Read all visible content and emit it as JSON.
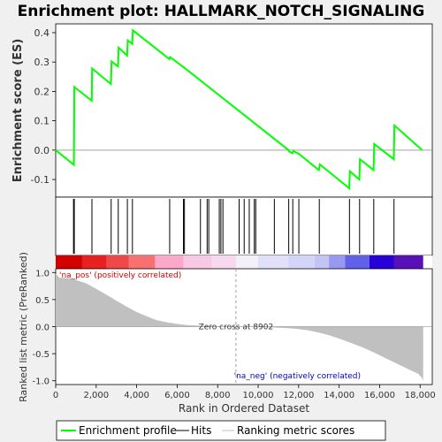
{
  "chart_data": {
    "type": "line",
    "title": "Enrichment plot: HALLMARK_NOTCH_SIGNALING",
    "es_panel": {
      "ylabel": "Enrichment score (ES)",
      "ylim": [
        -0.16,
        0.43
      ],
      "yticks": [
        0.4,
        0.3,
        0.2,
        0.1,
        0.0,
        -0.1
      ],
      "ytick_labels": [
        "0.4",
        "0.3",
        "0.2",
        "0.1",
        "0.0",
        "-0.1"
      ],
      "series": {
        "x": [
          0,
          900,
          920,
          1780,
          1800,
          2730,
          2760,
          3080,
          3110,
          3530,
          3560,
          3780,
          3810,
          5620,
          5650,
          6300,
          6330,
          11500,
          11530,
          11700,
          11730,
          12000,
          13000,
          13050,
          14500,
          14530,
          15000,
          15030,
          15700,
          15730,
          16700,
          16730,
          18100
        ],
        "y": [
          0.0,
          -0.05,
          0.215,
          0.168,
          0.278,
          0.225,
          0.302,
          0.285,
          0.349,
          0.322,
          0.374,
          0.362,
          0.408,
          0.31,
          0.317,
          0.283,
          0.282,
          0.0,
          -0.005,
          -0.01,
          -0.003,
          -0.012,
          -0.068,
          -0.049,
          -0.13,
          -0.072,
          -0.1,
          -0.031,
          -0.068,
          0.021,
          -0.031,
          0.084,
          0.0
        ]
      }
    },
    "hits": [
      880,
      920,
      1790,
      2740,
      3090,
      3540,
      3790,
      5630,
      6310,
      6360,
      7150,
      7480,
      7560,
      8080,
      8160,
      8260,
      9060,
      9310,
      9560,
      9810,
      9880,
      10800,
      11510,
      11710,
      12010,
      13020,
      14510,
      15010,
      15710,
      16710
    ],
    "ranking_panel": {
      "ylabel": "Ranked list metric (PreRanked)",
      "ylim": [
        -1.07,
        1.07
      ],
      "yticks": [
        1.0,
        0.5,
        0.0,
        -0.5,
        -1.0
      ],
      "ytick_labels": [
        "1.0",
        "0.5",
        "0.0",
        "-0.5",
        "-1.0"
      ],
      "x": [
        0,
        200,
        500,
        800,
        1100,
        1500,
        2000,
        2500,
        3000,
        3500,
        4000,
        4500,
        5000,
        5500,
        6000,
        6500,
        7000,
        7500,
        8000,
        8500,
        8902,
        9500,
        10000,
        10500,
        11000,
        11500,
        12000,
        12500,
        13000,
        13500,
        14000,
        14500,
        15000,
        15500,
        16000,
        16500,
        17000,
        17500,
        17900,
        18100,
        18150
      ],
      "y": [
        0.98,
        0.9,
        0.9,
        0.89,
        0.85,
        0.8,
        0.7,
        0.59,
        0.48,
        0.37,
        0.27,
        0.19,
        0.12,
        0.08,
        0.05,
        0.03,
        0.02,
        0.01,
        0.005,
        0.002,
        0.0,
        -0.003,
        -0.006,
        -0.01,
        -0.02,
        -0.03,
        -0.045,
        -0.07,
        -0.11,
        -0.16,
        -0.22,
        -0.29,
        -0.36,
        -0.44,
        -0.53,
        -0.62,
        -0.71,
        -0.8,
        -0.87,
        -0.95,
        -1.0
      ],
      "zero_cross_label": "Zero cross at 8902",
      "zero_cross_x": 8902,
      "pos_label": "'na_pos' (positively correlated)",
      "neg_label": "'na_neg' (negatively correlated)"
    },
    "xaxis": {
      "xlabel": "Rank in Ordered Dataset",
      "xlim": [
        0,
        18600
      ],
      "xticks": [
        0,
        2000,
        4000,
        6000,
        8000,
        10000,
        12000,
        14000,
        16000,
        18000
      ],
      "xtick_labels": [
        "0",
        "2,000",
        "4,000",
        "6,000",
        "8,000",
        "10,000",
        "12,000",
        "14,000",
        "16,000",
        "18,000"
      ]
    },
    "heatbar": {
      "x_end": 18150,
      "stops": [
        {
          "x": 0,
          "color": "#d40000"
        },
        {
          "x": 1300,
          "color": "#e82020"
        },
        {
          "x": 2500,
          "color": "#f04848"
        },
        {
          "x": 3600,
          "color": "#f87070"
        },
        {
          "x": 4900,
          "color": "#fca8c8"
        },
        {
          "x": 6300,
          "color": "#f8c8e4"
        },
        {
          "x": 7700,
          "color": "#f8d8ee"
        },
        {
          "x": 8902,
          "color": "#f4f0f8"
        },
        {
          "x": 10000,
          "color": "#e0e0f8"
        },
        {
          "x": 11500,
          "color": "#d4d4f8"
        },
        {
          "x": 12800,
          "color": "#c4c4f4"
        },
        {
          "x": 13500,
          "color": "#9898f0"
        },
        {
          "x": 14300,
          "color": "#6060e8"
        },
        {
          "x": 15500,
          "color": "#2800d8"
        },
        {
          "x": 16700,
          "color": "#5810b8"
        },
        {
          "x": 18150,
          "color": "#5810b8"
        }
      ]
    },
    "legend": {
      "entries": [
        {
          "label": "Enrichment profile",
          "color": "#00ff00"
        },
        {
          "label": "Hits",
          "color": "#000000"
        },
        {
          "label": "Ranking metric scores",
          "color": "#c0c0c0"
        }
      ]
    },
    "colors": {
      "es_line": "#00ff00",
      "hits": "#000000",
      "ranking_fill": "#c0c0c0",
      "zero_line": "#a0a0a0",
      "pos_text": "#d00000",
      "neg_text": "#0000c0",
      "background": "#ffffff",
      "outer_bg": "#f0f0f0"
    }
  }
}
